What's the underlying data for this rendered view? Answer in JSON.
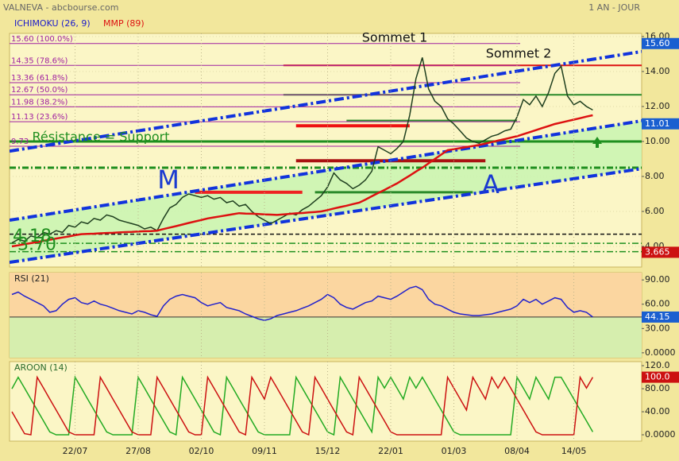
{
  "header": {
    "title": "VALNEVA - abcbourse.com",
    "period": "1 AN - JOUR"
  },
  "chart_data": [
    {
      "type": "line",
      "legend": [
        {
          "name": "ICHIMOKU (26, 9)",
          "color": "#1a1acc"
        }
      ],
      "categories": [
        null,
        null,
        null,
        null,
        null,
        null,
        null,
        null,
        null,
        null,
        "22/07",
        null,
        null,
        null,
        null,
        null,
        null,
        null,
        null,
        null,
        "27/08",
        null,
        null,
        null,
        null,
        null,
        null,
        null,
        null,
        null,
        "02/10",
        null,
        null,
        null,
        null,
        null,
        null,
        null,
        null,
        null,
        "09/11",
        null,
        null,
        null,
        null,
        null,
        null,
        null,
        null,
        null,
        "15/12",
        null,
        null,
        null,
        null,
        null,
        null,
        null,
        null,
        null,
        "22/01",
        null,
        null,
        null,
        null,
        null,
        null,
        null,
        null,
        null,
        "01/03",
        null,
        null,
        null,
        null,
        null,
        null,
        null,
        null,
        null,
        "08/04",
        null,
        null,
        null,
        null,
        null,
        null,
        null,
        null,
        "14/05",
        null,
        null,
        null
      ],
      "series": [
        {
          "color": "#1f3f1f",
          "values": [
            4.2,
            4.4,
            4.3,
            4.6,
            4.5,
            4.8,
            4.7,
            4.9,
            4.8,
            5.2,
            5.1,
            5.4,
            5.3,
            5.6,
            5.5,
            5.8,
            5.7,
            5.5,
            5.4,
            5.3,
            5.2,
            5.0,
            5.1,
            4.9,
            5.6,
            6.2,
            6.4,
            6.8,
            7.0,
            6.9,
            6.8,
            6.9,
            6.7,
            6.8,
            6.5,
            6.6,
            6.3,
            6.4,
            6.0,
            5.7,
            5.5,
            5.3,
            5.5,
            5.7,
            5.9,
            5.8,
            6.1,
            6.3,
            6.6,
            6.9,
            7.4,
            8.2,
            7.8,
            7.6,
            7.3,
            7.5,
            7.8,
            8.3,
            9.7,
            9.5,
            9.3,
            9.6,
            10.0,
            11.5,
            13.6,
            14.8,
            13.0,
            12.3,
            12.0,
            11.3,
            11.0,
            10.6,
            10.2,
            10.0,
            9.9,
            10.1,
            10.3,
            10.4,
            10.6,
            10.7,
            11.4,
            12.4,
            12.1,
            12.6,
            12.0,
            12.8,
            13.9,
            14.3,
            12.6,
            12.1,
            12.3,
            12.0,
            11.8
          ]
        },
        {
          "name": "MMP (89)",
          "color": "#dd1111",
          "values": [
            4.0,
            4.06,
            4.13,
            4.19,
            4.25,
            4.32,
            4.38,
            4.45,
            4.51,
            4.57,
            4.64,
            4.7,
            4.72,
            4.73,
            4.75,
            4.77,
            4.78,
            4.8,
            4.82,
            4.83,
            4.85,
            4.87,
            4.88,
            4.9,
            4.99,
            5.08,
            5.16,
            5.25,
            5.34,
            5.43,
            5.51,
            5.6,
            5.66,
            5.72,
            5.78,
            5.84,
            5.9,
            5.88,
            5.87,
            5.85,
            5.83,
            5.82,
            5.8,
            5.83,
            5.86,
            5.89,
            5.91,
            5.94,
            5.97,
            6.0,
            6.08,
            6.17,
            6.25,
            6.33,
            6.42,
            6.5,
            6.68,
            6.87,
            7.05,
            7.23,
            7.42,
            7.6,
            7.83,
            8.05,
            8.28,
            8.5,
            8.75,
            9.0,
            9.25,
            9.5,
            9.56,
            9.62,
            9.68,
            9.74,
            9.8,
            9.88,
            9.97,
            10.05,
            10.13,
            10.22,
            10.3,
            10.42,
            10.53,
            10.65,
            10.77,
            10.88,
            11.0,
            11.08,
            11.17,
            11.25,
            11.33,
            11.42,
            11.5
          ]
        }
      ],
      "ylim": [
        2.82,
        16.18
      ],
      "yticks": [
        {
          "value": 4,
          "label": "4.00"
        },
        {
          "value": 6,
          "label": "6.00"
        },
        {
          "value": 8,
          "label": "8.00"
        },
        {
          "value": 10,
          "label": "10.00"
        },
        {
          "value": 12,
          "label": "12.00"
        },
        {
          "value": 14,
          "label": "14.00"
        },
        {
          "value": 16,
          "label": "16.00"
        }
      ],
      "grid": true,
      "fibonacci": {
        "color": "#a020a0",
        "levels": [
          {
            "value": 15.6,
            "label": "15.60 (100.0%)"
          },
          {
            "value": 14.35,
            "label": "14.35 (78.6%)"
          },
          {
            "value": 13.36,
            "label": "13.36 (61.8%)"
          },
          {
            "value": 12.67,
            "label": "12.67 (50.0%)"
          },
          {
            "value": 11.98,
            "label": "11.98 (38.2%)"
          },
          {
            "value": 11.13,
            "label": "11.13 (23.6%)"
          },
          {
            "value": 9.73,
            "label": "9.73"
          }
        ]
      },
      "levels": [
        {
          "value": 14.35,
          "color": "#dd1111",
          "style": "solid",
          "width": 2,
          "x": [
            43
          ]
        },
        {
          "value": 12.67,
          "color": "#2a8a2a",
          "style": "solid",
          "width": 2,
          "x": [
            43
          ]
        },
        {
          "value": 10,
          "color": "#1f8f1f",
          "style": "solid",
          "width": 3
        },
        {
          "value": 8.5,
          "color": "#1f8f1f",
          "style": "dashdot",
          "width": 3
        },
        {
          "value": 10.9,
          "color": "#ee1111",
          "style": "solid",
          "width": 4,
          "x": [
            45,
            63
          ]
        },
        {
          "value": 11.2,
          "color": "#2a8a2a",
          "style": "solid",
          "width": 2,
          "x": [
            53,
            80
          ]
        },
        {
          "value": 8.9,
          "color": "#aa1111",
          "style": "solid",
          "width": 4,
          "x": [
            45,
            75
          ]
        },
        {
          "value": 7.1,
          "color": "#ee2222",
          "style": "solid",
          "width": 4,
          "x": [
            29,
            46
          ]
        },
        {
          "value": 7.1,
          "color": "#2a8a2a",
          "style": "solid",
          "width": 3,
          "x": [
            48,
            73
          ]
        },
        {
          "value": 4.7,
          "color": "#111111",
          "style": "dashed",
          "width": 1.5
        },
        {
          "value": 4.18,
          "label": "4.18",
          "color": "#1f8f1f",
          "style": "dashdot",
          "width": 1.5
        },
        {
          "value": 3.7,
          "label": "3.70",
          "color": "#1f8f1f",
          "style": "dashdot",
          "width": 1.5
        }
      ],
      "channel": {
        "color": "#1133dd",
        "fill": "#c8f5b0",
        "lines": [
          {
            "x": [
              0,
              92
            ],
            "values": [
              9.47,
              14.7
            ]
          },
          {
            "x": [
              0,
              92
            ],
            "values": [
              5.52,
              10.74
            ]
          },
          {
            "x": [
              0,
              92
            ],
            "values": [
              3.11,
              8.03
            ]
          }
        ]
      },
      "markers": [
        {
          "value": 15.6,
          "label": "15.60",
          "color": "#1a5fd0"
        },
        {
          "value": 11.01,
          "color": "#1a5fd0"
        },
        {
          "value": 3.665,
          "color": "#cc1111"
        }
      ],
      "annotations": [
        "Sommet 1",
        "Sommet 2",
        "M",
        "A",
        "Résistance = Support"
      ]
    },
    {
      "type": "line",
      "title": "RSI (21)",
      "series": [
        {
          "color": "#2222cc",
          "values": [
            72,
            75,
            70,
            66,
            62,
            58,
            50,
            52,
            60,
            66,
            68,
            62,
            60,
            64,
            60,
            58,
            55,
            52,
            50,
            48,
            52,
            50,
            47,
            45,
            58,
            66,
            70,
            72,
            70,
            68,
            62,
            58,
            60,
            62,
            56,
            54,
            52,
            48,
            45,
            42,
            40,
            42,
            46,
            48,
            50,
            52,
            55,
            58,
            62,
            66,
            72,
            68,
            60,
            56,
            54,
            58,
            62,
            64,
            70,
            68,
            66,
            70,
            75,
            80,
            82,
            78,
            66,
            60,
            58,
            54,
            50,
            48,
            47,
            46,
            46,
            47,
            48,
            50,
            52,
            54,
            58,
            66,
            62,
            66,
            60,
            64,
            68,
            66,
            56,
            50,
            52,
            50,
            44.15
          ]
        }
      ],
      "ylim": [
        -6,
        99
      ],
      "yticks": [
        {
          "value": 0,
          "label": "0.0000"
        },
        {
          "value": 30,
          "label": "30.00"
        },
        {
          "value": 60,
          "label": "60.00"
        },
        {
          "value": 90,
          "label": "90.00"
        }
      ],
      "markers": [
        {
          "value": 44.15,
          "color": "#1a5fd0"
        }
      ]
    },
    {
      "type": "line",
      "title": "AROON (14)",
      "series": [
        {
          "color": "#22aa22",
          "values": [
            80,
            100,
            81,
            62,
            43,
            24,
            5,
            0,
            0,
            0,
            100,
            81,
            62,
            43,
            24,
            5,
            0,
            0,
            0,
            0,
            100,
            81,
            62,
            43,
            24,
            5,
            0,
            100,
            81,
            62,
            43,
            24,
            5,
            0,
            100,
            81,
            62,
            43,
            24,
            5,
            0,
            0,
            0,
            0,
            0,
            100,
            81,
            62,
            43,
            24,
            5,
            0,
            100,
            81,
            62,
            43,
            24,
            5,
            100,
            81,
            100,
            81,
            62,
            100,
            81,
            100,
            81,
            62,
            43,
            24,
            5,
            0,
            0,
            0,
            0,
            0,
            0,
            0,
            0,
            0,
            100,
            81,
            62,
            100,
            81,
            62,
            100,
            100,
            81,
            62,
            43,
            24,
            5
          ]
        },
        {
          "color": "#cc1111",
          "values": [
            40,
            21,
            2,
            0,
            100,
            81,
            62,
            43,
            24,
            5,
            0,
            0,
            0,
            0,
            100,
            81,
            62,
            43,
            24,
            5,
            0,
            0,
            0,
            100,
            81,
            62,
            43,
            24,
            5,
            0,
            0,
            100,
            81,
            62,
            43,
            24,
            5,
            0,
            100,
            81,
            62,
            100,
            81,
            62,
            43,
            24,
            5,
            0,
            100,
            81,
            62,
            43,
            24,
            5,
            0,
            100,
            81,
            62,
            43,
            24,
            5,
            0,
            0,
            0,
            0,
            0,
            0,
            0,
            0,
            100,
            81,
            62,
            43,
            100,
            81,
            62,
            100,
            81,
            100,
            81,
            62,
            43,
            24,
            5,
            0,
            0,
            0,
            0,
            0,
            0,
            100,
            81,
            100
          ]
        }
      ],
      "ylim": [
        -11,
        127
      ],
      "yticks": [
        {
          "value": 0,
          "label": "0.0000"
        },
        {
          "value": 40,
          "label": "40.00"
        },
        {
          "value": 80,
          "label": "80.00"
        },
        {
          "value": 120,
          "label": "120.0"
        }
      ],
      "markers": [
        {
          "value": 100,
          "label": "100.0",
          "color": "#cc1111"
        }
      ]
    }
  ]
}
